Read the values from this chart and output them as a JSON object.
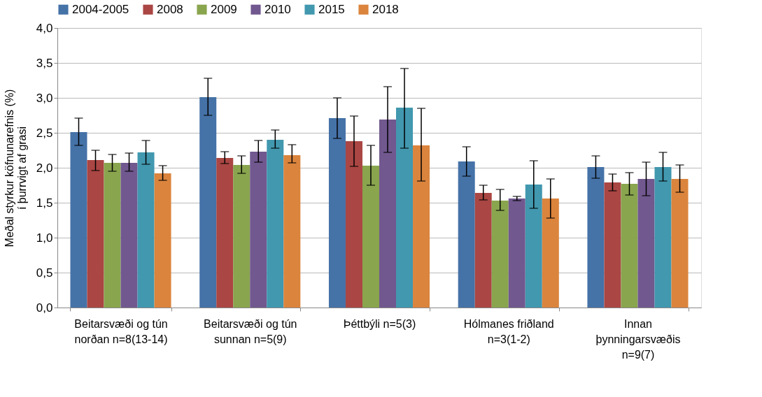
{
  "chart_data": {
    "type": "bar",
    "ylabel": "Meðal styrkur köfnunarefnis (%)\ní þurrvigt af grasi",
    "categories": [
      "Beitarsvæði og tún\nnorðan n=8(13-14)",
      "Beitarsvæði og tún\nsunnan n=5(9)",
      "Þéttbýli n=5(3)",
      "Hólmanes friðland\nn=3(1-2)",
      "Innan\nþynningarsvæðis\nn=9(7)"
    ],
    "series": [
      {
        "name": "2004-2005",
        "color": "#4572a7",
        "values": [
          2.51,
          3.01,
          2.71,
          2.09,
          2.01
        ],
        "errors": [
          [
            2.32,
            2.71
          ],
          [
            2.75,
            3.28
          ],
          [
            2.42,
            3.0
          ],
          [
            1.88,
            2.3
          ],
          [
            1.85,
            2.17
          ]
        ]
      },
      {
        "name": "2008",
        "color": "#aa4643",
        "values": [
          2.11,
          2.14,
          2.38,
          1.64,
          1.79
        ],
        "errors": [
          [
            1.96,
            2.25
          ],
          [
            2.06,
            2.23
          ],
          [
            2.02,
            2.74
          ],
          [
            1.54,
            1.75
          ],
          [
            1.67,
            1.91
          ]
        ]
      },
      {
        "name": "2009",
        "color": "#89a54e",
        "values": [
          2.07,
          2.04,
          2.03,
          1.53,
          1.77
        ],
        "errors": [
          [
            1.95,
            2.19
          ],
          [
            1.92,
            2.17
          ],
          [
            1.75,
            2.32
          ],
          [
            1.39,
            1.69
          ],
          [
            1.61,
            1.93
          ]
        ]
      },
      {
        "name": "2010",
        "color": "#71588f",
        "values": [
          2.07,
          2.23,
          2.69,
          1.56,
          1.84
        ],
        "errors": [
          [
            1.95,
            2.21
          ],
          [
            2.08,
            2.39
          ],
          [
            2.22,
            3.16
          ],
          [
            1.53,
            1.59
          ],
          [
            1.6,
            2.08
          ]
        ]
      },
      {
        "name": "2015",
        "color": "#4198af",
        "values": [
          2.22,
          2.4,
          2.86,
          1.76,
          2.01
        ],
        "errors": [
          [
            2.05,
            2.39
          ],
          [
            2.28,
            2.54
          ],
          [
            2.28,
            3.42
          ],
          [
            1.42,
            2.1
          ],
          [
            1.81,
            2.22
          ]
        ]
      },
      {
        "name": "2018",
        "color": "#db843d",
        "values": [
          1.92,
          2.18,
          2.32,
          1.56,
          1.84
        ],
        "errors": [
          [
            1.82,
            2.03
          ],
          [
            2.07,
            2.33
          ],
          [
            1.81,
            2.85
          ],
          [
            1.28,
            1.84
          ],
          [
            1.65,
            2.04
          ]
        ]
      }
    ],
    "ylim": [
      0,
      4
    ],
    "yticks": [
      {
        "value": 0,
        "label": "0,0"
      },
      {
        "value": 0.5,
        "label": "0,5"
      },
      {
        "value": 1,
        "label": "1,0"
      },
      {
        "value": 1.5,
        "label": "1,5"
      },
      {
        "value": 2,
        "label": "2,0"
      },
      {
        "value": 2.5,
        "label": "2,5"
      },
      {
        "value": 3,
        "label": "3,0"
      },
      {
        "value": 3.5,
        "label": "3,5"
      },
      {
        "value": 4,
        "label": "4,0"
      }
    ],
    "grid": "y",
    "legend": "top"
  }
}
